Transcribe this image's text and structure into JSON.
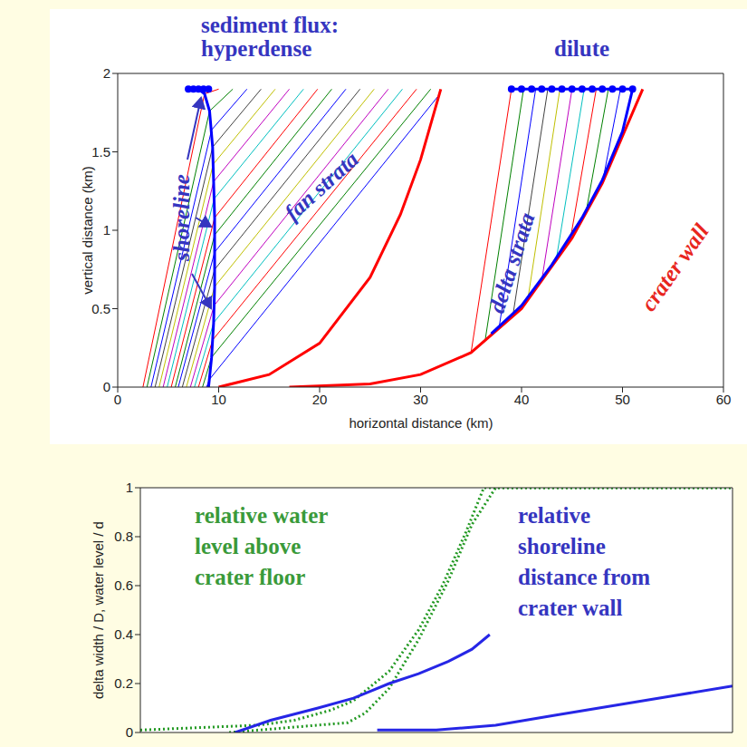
{
  "chart_data": [
    {
      "type": "line",
      "x_label": "horizontal distance (km)",
      "y_label": "vertical distance (km)",
      "annotations": [
        "sediment flux:",
        "hyperdense",
        "dilute",
        "shoreline",
        "fan strata",
        "delta strata",
        "crater wall"
      ],
      "xlim": [
        0,
        60
      ],
      "xticks": [
        0,
        10,
        20,
        30,
        40,
        50,
        60
      ],
      "ylim": [
        0,
        2
      ],
      "yticks": [
        0,
        0.5,
        1,
        1.5,
        2
      ],
      "series": [
        {
          "color": "#0000ff",
          "line_style": "solid",
          "x": [
            8.8,
            9.1,
            31.8
          ],
          "values": [
            0,
            0.05,
            1.86
          ]
        },
        {
          "color": "#008000",
          "line_style": "solid",
          "x": [
            8.4,
            9.3,
            31
          ],
          "values": [
            0,
            0.19,
            1.9
          ]
        },
        {
          "color": "#ff0000",
          "line_style": "solid",
          "x": [
            8.0,
            9.4,
            29.6
          ],
          "values": [
            0,
            0.3,
            1.9
          ]
        },
        {
          "color": "#00bfbf",
          "line_style": "solid",
          "x": [
            7.6,
            9.5,
            28.2
          ],
          "values": [
            0,
            0.41,
            1.9
          ]
        },
        {
          "color": "#bf00bf",
          "line_style": "solid",
          "x": [
            7.2,
            9.55,
            26.8
          ],
          "values": [
            0,
            0.52,
            1.9
          ]
        },
        {
          "color": "#bfbf00",
          "line_style": "solid",
          "x": [
            6.8,
            9.6,
            25.4
          ],
          "values": [
            0,
            0.64,
            1.9
          ]
        },
        {
          "color": "#404040",
          "line_style": "solid",
          "x": [
            6.4,
            9.6,
            24
          ],
          "values": [
            0,
            0.75,
            1.9
          ]
        },
        {
          "color": "#0000ff",
          "line_style": "solid",
          "x": [
            6.0,
            9.6,
            22.6
          ],
          "values": [
            0,
            0.86,
            1.9
          ]
        },
        {
          "color": "#008000",
          "line_style": "solid",
          "x": [
            5.7,
            9.6,
            21.2
          ],
          "values": [
            0,
            0.97,
            1.9
          ]
        },
        {
          "color": "#ff0000",
          "line_style": "solid",
          "x": [
            5.3,
            9.6,
            19.8
          ],
          "values": [
            0,
            1.08,
            1.9
          ]
        },
        {
          "color": "#00bfbf",
          "line_style": "solid",
          "x": [
            4.9,
            9.55,
            18.4
          ],
          "values": [
            0,
            1.2,
            1.9
          ]
        },
        {
          "color": "#bf00bf",
          "line_style": "solid",
          "x": [
            4.5,
            9.5,
            17
          ],
          "values": [
            0,
            1.31,
            1.9
          ]
        },
        {
          "color": "#bfbf00",
          "line_style": "solid",
          "x": [
            4.1,
            9.45,
            15.6
          ],
          "values": [
            0,
            1.42,
            1.9
          ]
        },
        {
          "color": "#404040",
          "line_style": "solid",
          "x": [
            3.7,
            9.4,
            14.2
          ],
          "values": [
            0,
            1.53,
            1.9
          ]
        },
        {
          "color": "#0000ff",
          "line_style": "solid",
          "x": [
            3.3,
            9.3,
            12.8
          ],
          "values": [
            0,
            1.64,
            1.9
          ]
        },
        {
          "color": "#008000",
          "line_style": "solid",
          "x": [
            2.9,
            9.1,
            11.4
          ],
          "values": [
            0,
            1.76,
            1.9
          ]
        },
        {
          "color": "#ff0000",
          "line_style": "solid",
          "x": [
            2.5,
            8.6,
            10
          ],
          "values": [
            0,
            1.87,
            1.9
          ]
        },
        {
          "color": "#ff0000",
          "line_style": "solid",
          "x": [
            35,
            39
          ],
          "values": [
            0.22,
            1.9
          ]
        },
        {
          "color": "#008000",
          "line_style": "solid",
          "x": [
            36.4,
            40.2
          ],
          "values": [
            0.3,
            1.9
          ]
        },
        {
          "color": "#0000ff",
          "line_style": "solid",
          "x": [
            37.8,
            41.4
          ],
          "values": [
            0.39,
            1.9
          ]
        },
        {
          "color": "#404040",
          "line_style": "solid",
          "x": [
            39.2,
            42.6
          ],
          "values": [
            0.48,
            1.9
          ]
        },
        {
          "color": "#bfbf00",
          "line_style": "solid",
          "x": [
            40.6,
            43.8
          ],
          "values": [
            0.55,
            1.9
          ]
        },
        {
          "color": "#bf00bf",
          "line_style": "solid",
          "x": [
            42,
            45
          ],
          "values": [
            0.68,
            1.9
          ]
        },
        {
          "color": "#00bfbf",
          "line_style": "solid",
          "x": [
            43.4,
            46.2
          ],
          "values": [
            0.8,
            1.9
          ]
        },
        {
          "color": "#ff0000",
          "line_style": "solid",
          "x": [
            44.8,
            47.4
          ],
          "values": [
            0.93,
            1.9
          ]
        },
        {
          "color": "#008000",
          "line_style": "solid",
          "x": [
            46.4,
            48.6
          ],
          "values": [
            1.12,
            1.9
          ]
        },
        {
          "color": "#0000ff",
          "line_style": "solid",
          "x": [
            48,
            49.8
          ],
          "values": [
            1.3,
            1.9
          ]
        },
        {
          "color": "#ff0000",
          "line_style": "thick",
          "x": [
            10,
            15,
            20,
            25,
            28,
            30,
            32
          ],
          "values": [
            0,
            0.08,
            0.28,
            0.7,
            1.1,
            1.45,
            1.9
          ]
        },
        {
          "color": "#ff0000",
          "line_style": "thick",
          "x": [
            17,
            25,
            30,
            35,
            40,
            45,
            48,
            50,
            52
          ],
          "values": [
            0,
            0.02,
            0.08,
            0.22,
            0.5,
            0.95,
            1.3,
            1.6,
            1.9
          ]
        },
        {
          "color": "#0000ff",
          "line_style": "thick",
          "x": [
            9.0,
            9.3,
            9.5,
            9.6,
            9.6,
            9.5,
            9.4,
            9.1,
            8.6,
            8.0
          ],
          "values": [
            0,
            0.19,
            0.41,
            0.64,
            1.08,
            1.31,
            1.53,
            1.76,
            1.87,
            1.9
          ]
        },
        {
          "color": "#0000ff",
          "line_style": "thick",
          "x": [
            37,
            40,
            43,
            46,
            48,
            50,
            51
          ],
          "values": [
            0.34,
            0.52,
            0.78,
            1.08,
            1.32,
            1.63,
            1.9
          ]
        },
        {
          "color": "#0000ff",
          "line_style": "thick",
          "marker": "dot",
          "x": [
            7,
            7.5,
            8,
            8.5,
            9
          ],
          "values": [
            1.9,
            1.9,
            1.9,
            1.9,
            1.9
          ]
        },
        {
          "color": "#0000ff",
          "line_style": "thick",
          "marker": "dot",
          "x": [
            39,
            40,
            41,
            42,
            43,
            44,
            45,
            46,
            47,
            48,
            49,
            50,
            51
          ],
          "values": [
            1.9,
            1.9,
            1.9,
            1.9,
            1.9,
            1.9,
            1.9,
            1.9,
            1.9,
            1.9,
            1.9,
            1.9,
            1.9
          ]
        }
      ]
    },
    {
      "type": "line",
      "y_label": "delta width / D, water level / d",
      "annotations": [
        "relative water level above crater floor",
        "relative shoreline distance from crater wall"
      ],
      "xlim": [
        0,
        1
      ],
      "ylim": [
        0,
        1
      ],
      "yticks": [
        0,
        0.2,
        0.4,
        0.6,
        0.8,
        1
      ],
      "tick_labels": "y",
      "series": [
        {
          "color": "#229922",
          "line_style": "dotted",
          "x": [
            0,
            0.1,
            0.2,
            0.26,
            0.32,
            0.36,
            0.42,
            0.47,
            0.51,
            0.55,
            0.58,
            0.7,
            0.85,
            1
          ],
          "values": [
            0.01,
            0.02,
            0.03,
            0.05,
            0.09,
            0.13,
            0.25,
            0.42,
            0.6,
            0.82,
            1,
            1,
            1,
            1
          ]
        },
        {
          "color": "#229922",
          "line_style": "dotted",
          "x": [
            0.15,
            0.25,
            0.35,
            0.38,
            0.42,
            0.47,
            0.52,
            0.56,
            0.6,
            0.7,
            0.85,
            1
          ],
          "values": [
            0,
            0.02,
            0.04,
            0.08,
            0.18,
            0.38,
            0.62,
            0.85,
            1,
            1,
            1,
            1
          ]
        },
        {
          "color": "#2626e6",
          "line_style": "thick",
          "x": [
            0.16,
            0.22,
            0.3,
            0.36,
            0.42,
            0.47,
            0.52,
            0.56,
            0.59
          ],
          "values": [
            0,
            0.05,
            0.1,
            0.14,
            0.2,
            0.24,
            0.29,
            0.34,
            0.4
          ]
        },
        {
          "color": "#2626e6",
          "line_style": "thick",
          "x": [
            0.4,
            0.5,
            0.6,
            0.7,
            0.8,
            0.9,
            1
          ],
          "values": [
            0.01,
            0.01,
            0.03,
            0.07,
            0.11,
            0.15,
            0.19
          ]
        }
      ]
    }
  ]
}
